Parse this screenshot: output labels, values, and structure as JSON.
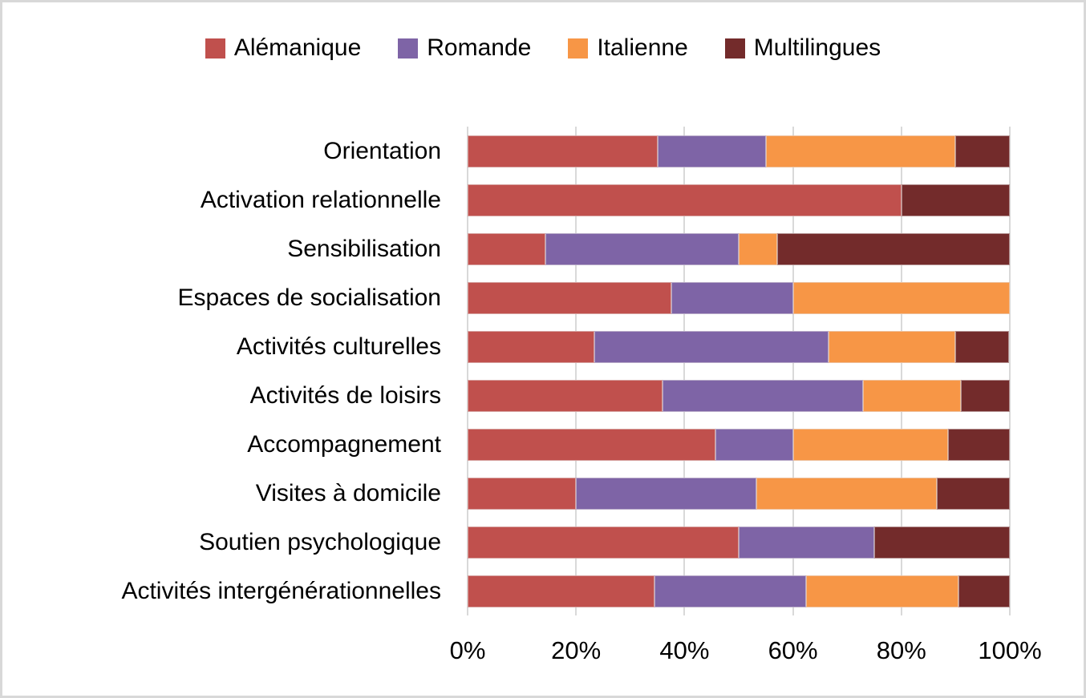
{
  "chart_data": {
    "type": "bar",
    "orientation": "horizontal",
    "stacked": true,
    "unit": "percent",
    "title": "",
    "xlabel": "",
    "ylabel": "",
    "xlim": [
      0,
      100
    ],
    "x_ticks": [
      "0%",
      "20%",
      "40%",
      "60%",
      "80%",
      "100%"
    ],
    "x_tick_values": [
      0,
      20,
      40,
      60,
      80,
      100
    ],
    "grid": "vertical",
    "gridline_color": "#D9D9D9",
    "legend_position": "top",
    "categories": [
      "Orientation",
      "Activation relationnelle",
      "Sensibilisation",
      "Espaces de socialisation",
      "Activités culturelles",
      "Activités de loisirs",
      "Accompagnement",
      "Visites à domicile",
      "Soutien psychologique",
      "Activités intergénérationnelles"
    ],
    "series": [
      {
        "name": "Alémanique",
        "color": "#C0504D",
        "values": [
          35,
          80,
          14.3,
          37.5,
          23.3,
          36,
          45.7,
          20,
          50,
          34.4
        ]
      },
      {
        "name": "Romande",
        "color": "#7E64A6",
        "values": [
          20,
          0,
          35.7,
          22.5,
          43.3,
          37,
          14.3,
          33.3,
          25,
          28.1
        ]
      },
      {
        "name": "Italienne",
        "color": "#F79646",
        "values": [
          35,
          0,
          7.1,
          40,
          23.3,
          18,
          28.6,
          33.3,
          0,
          28.1
        ]
      },
      {
        "name": "Multilingues",
        "color": "#732B2B",
        "values": [
          10,
          20,
          42.9,
          0,
          10,
          9,
          11.4,
          13.4,
          25,
          9.4
        ]
      }
    ]
  },
  "legend": {
    "items": [
      {
        "label": "Alémanique",
        "color": "#C0504D"
      },
      {
        "label": "Romande",
        "color": "#7E64A6"
      },
      {
        "label": "Italienne",
        "color": "#F79646"
      },
      {
        "label": "Multilingues",
        "color": "#732B2B"
      }
    ]
  }
}
